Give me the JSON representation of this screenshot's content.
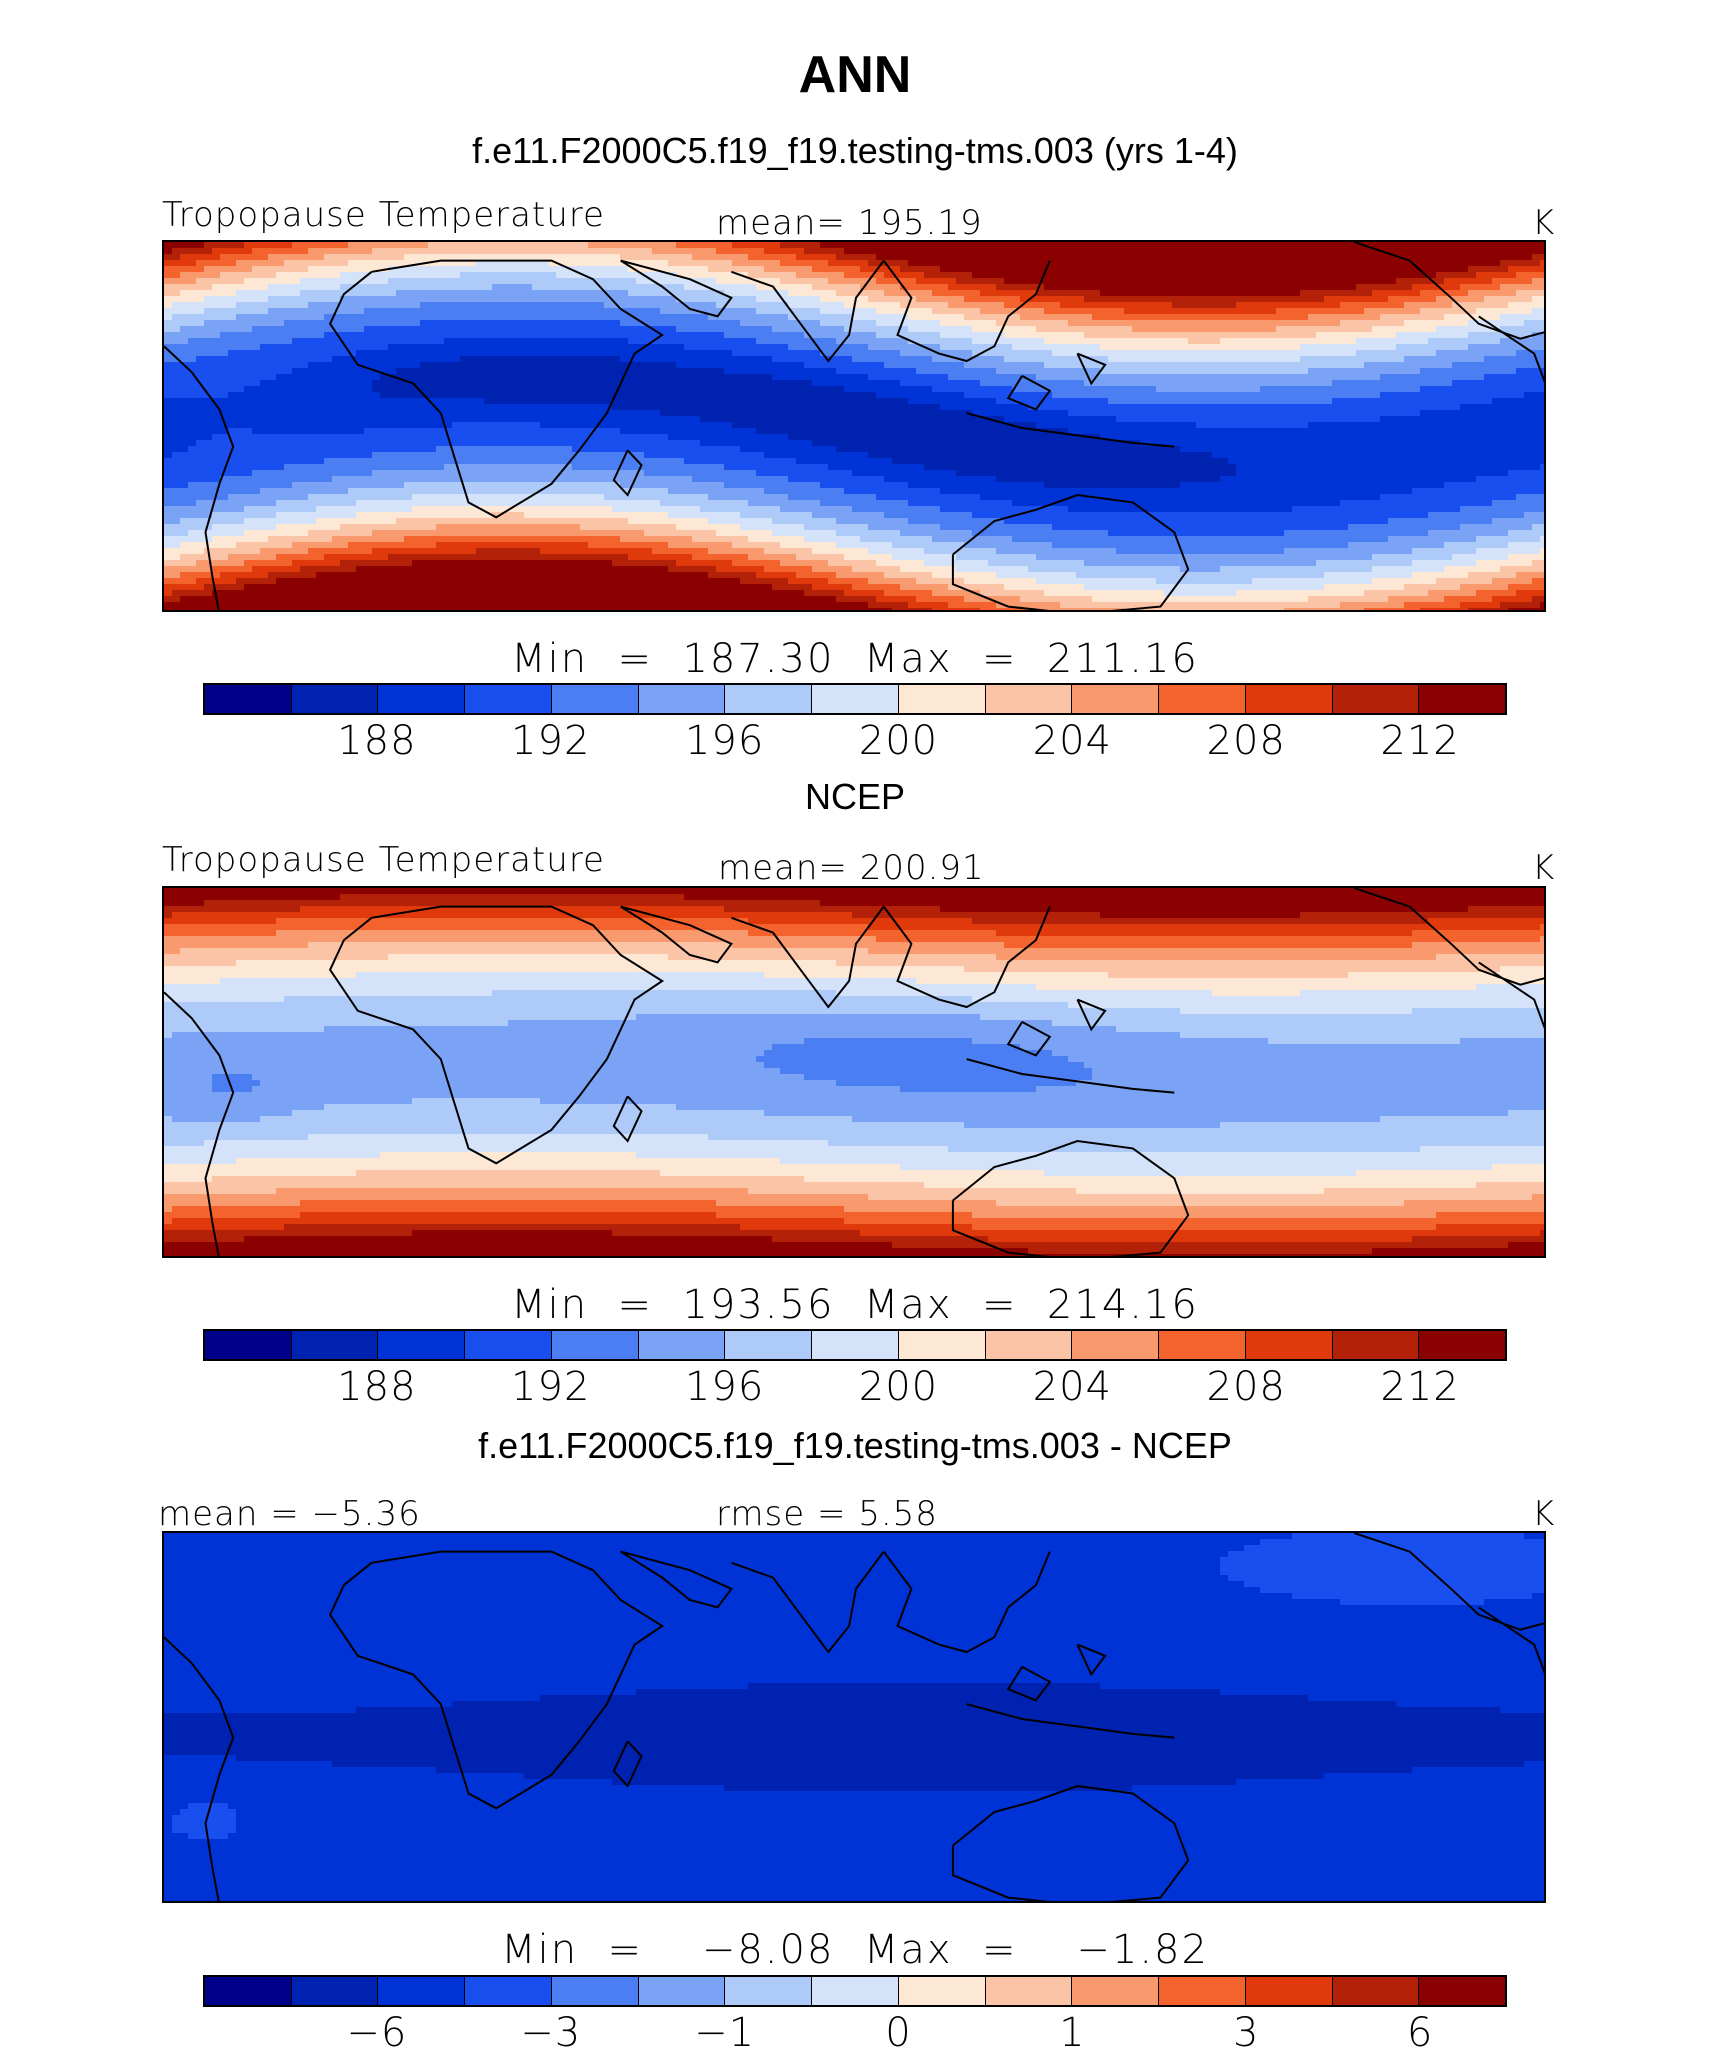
{
  "title": "ANN",
  "panels": [
    {
      "heading": "f.e11.F2000C5.f19_f19.testing-tms.003 (yrs 1-4)",
      "left_label": "Tropopause Temperature",
      "center_label": "mean=  195.19",
      "units": "K",
      "minmax": "Min  =  187.30  Max  =  211.16",
      "ticks": [
        "188",
        "192",
        "196",
        "200",
        "204",
        "208",
        "212"
      ],
      "field": "model"
    },
    {
      "heading": "NCEP",
      "left_label": "Tropopause Temperature",
      "center_label": "mean=  200.91",
      "units": "K",
      "minmax": "Min  =  193.56  Max  =  214.16",
      "ticks": [
        "188",
        "192",
        "196",
        "200",
        "204",
        "208",
        "212"
      ],
      "field": "obs"
    },
    {
      "heading": "f.e11.F2000C5.f19_f19.testing-tms.003 - NCEP",
      "left_label": "mean =    −5.36",
      "center_label": "rmse =      5.58",
      "units": "K",
      "minmax": "Min  =    −8.08  Max  =    −1.82",
      "ticks": [
        "−6",
        "−3",
        "−1",
        "0",
        "1",
        "3",
        "6"
      ],
      "field": "diff"
    }
  ],
  "colormap": [
    "#00008b",
    "#0022b0",
    "#0033d6",
    "#1a4fef",
    "#4a7ef2",
    "#7ba3f5",
    "#aecaf8",
    "#d4e3fa",
    "#fde8d6",
    "#fbc4a6",
    "#f89a6e",
    "#f4632e",
    "#e03a0c",
    "#b32208",
    "#8b0000"
  ]
}
